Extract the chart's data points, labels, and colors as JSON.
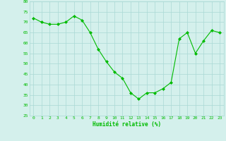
{
  "x": [
    0,
    1,
    2,
    3,
    4,
    5,
    6,
    7,
    8,
    9,
    10,
    11,
    12,
    13,
    14,
    15,
    16,
    17,
    18,
    19,
    20,
    21,
    22,
    23
  ],
  "y": [
    72,
    70,
    69,
    69,
    70,
    73,
    71,
    65,
    57,
    51,
    46,
    43,
    36,
    33,
    36,
    36,
    38,
    41,
    62,
    65,
    55,
    61,
    66,
    65
  ],
  "line_color": "#00bb00",
  "marker_color": "#00bb00",
  "bg_color": "#d4f0ec",
  "grid_color": "#aad8d4",
  "xlabel": "Humidité relative (%)",
  "xlabel_color": "#00bb00",
  "tick_color": "#00bb00",
  "ylim": [
    25,
    80
  ],
  "xlim": [
    -0.5,
    23.5
  ],
  "yticks": [
    25,
    30,
    35,
    40,
    45,
    50,
    55,
    60,
    65,
    70,
    75,
    80
  ],
  "xticks": [
    0,
    1,
    2,
    3,
    4,
    5,
    6,
    7,
    8,
    9,
    10,
    11,
    12,
    13,
    14,
    15,
    16,
    17,
    18,
    19,
    20,
    21,
    22,
    23
  ]
}
